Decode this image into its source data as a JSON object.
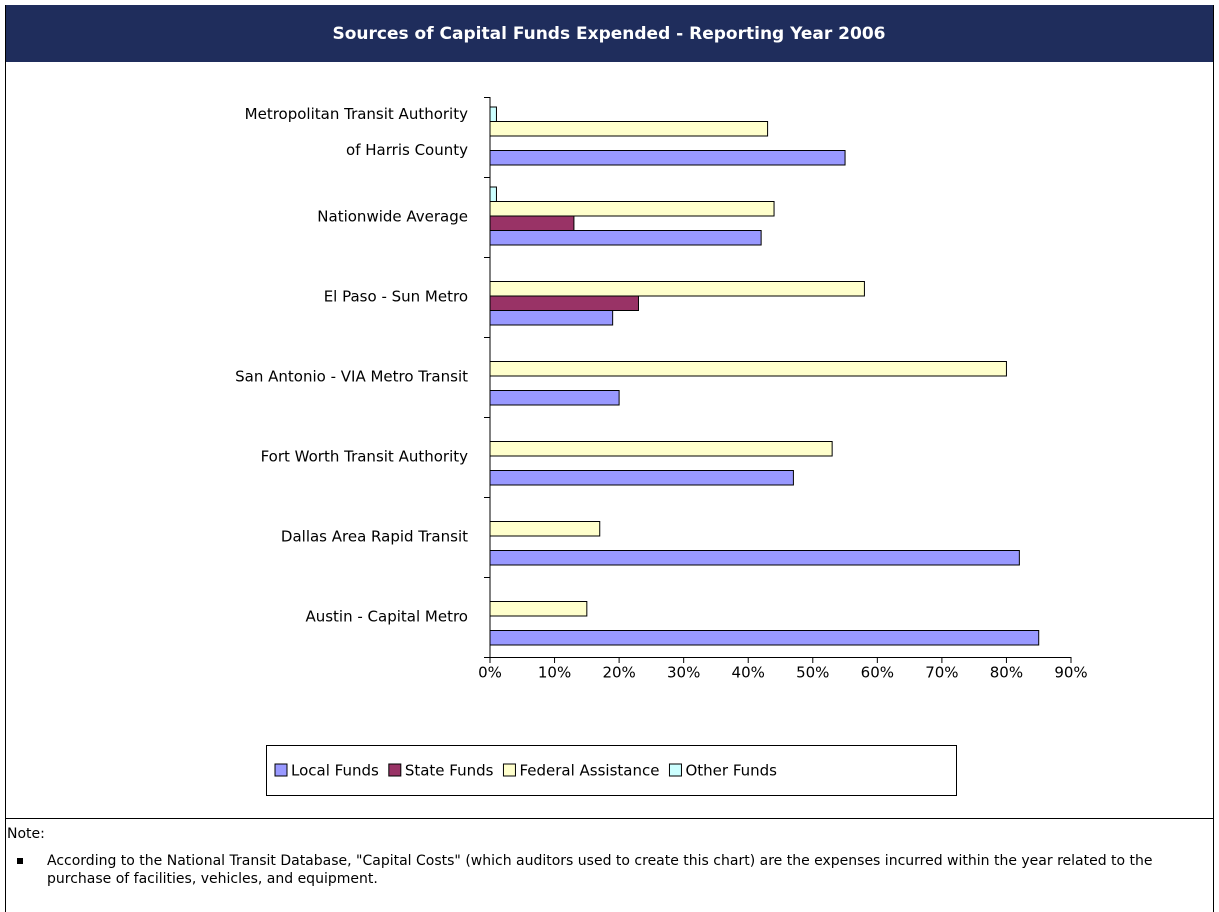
{
  "chart_data": {
    "type": "hbar",
    "title": "Sources of Capital Funds Expended - Reporting Year 2006",
    "categories": [
      "Metropolitan Transit Authority\nof Harris County",
      "Nationwide Average",
      "El Paso - Sun Metro",
      "San Antonio - VIA Metro Transit",
      "Fort Worth Transit Authority",
      "Dallas Area Rapid Transit",
      "Austin - Capital Metro"
    ],
    "series": [
      {
        "name": "Local Funds",
        "color": "#9999ff",
        "values": [
          55,
          42,
          19,
          20,
          47,
          82,
          85
        ]
      },
      {
        "name": "State Funds",
        "color": "#993366",
        "values": [
          null,
          13,
          23,
          null,
          null,
          null,
          null
        ]
      },
      {
        "name": "Federal Assistance",
        "color": "#ffffcc",
        "values": [
          43,
          44,
          58,
          80,
          53,
          17,
          15
        ]
      },
      {
        "name": "Other Funds",
        "color": "#ccffff",
        "values": [
          1,
          1,
          null,
          null,
          null,
          null,
          null
        ]
      }
    ],
    "xlim": [
      0,
      90
    ],
    "xticks": [
      {
        "value": 0,
        "label": "0%"
      },
      {
        "value": 10,
        "label": "10%"
      },
      {
        "value": 20,
        "label": "20%"
      },
      {
        "value": 30,
        "label": "30%"
      },
      {
        "value": 40,
        "label": "40%"
      },
      {
        "value": 50,
        "label": "50%"
      },
      {
        "value": 60,
        "label": "60%"
      },
      {
        "value": 70,
        "label": "70%"
      },
      {
        "value": 80,
        "label": "80%"
      },
      {
        "value": 90,
        "label": "90%"
      }
    ],
    "grid": false,
    "legend": "bottom"
  },
  "note": {
    "label": "Note:",
    "items": [
      "According to the National Transit Database, \"Capital Costs\" (which auditors used to create this chart) are the expenses incurred within the year related to the purchase of facilities, vehicles, and equipment."
    ]
  }
}
